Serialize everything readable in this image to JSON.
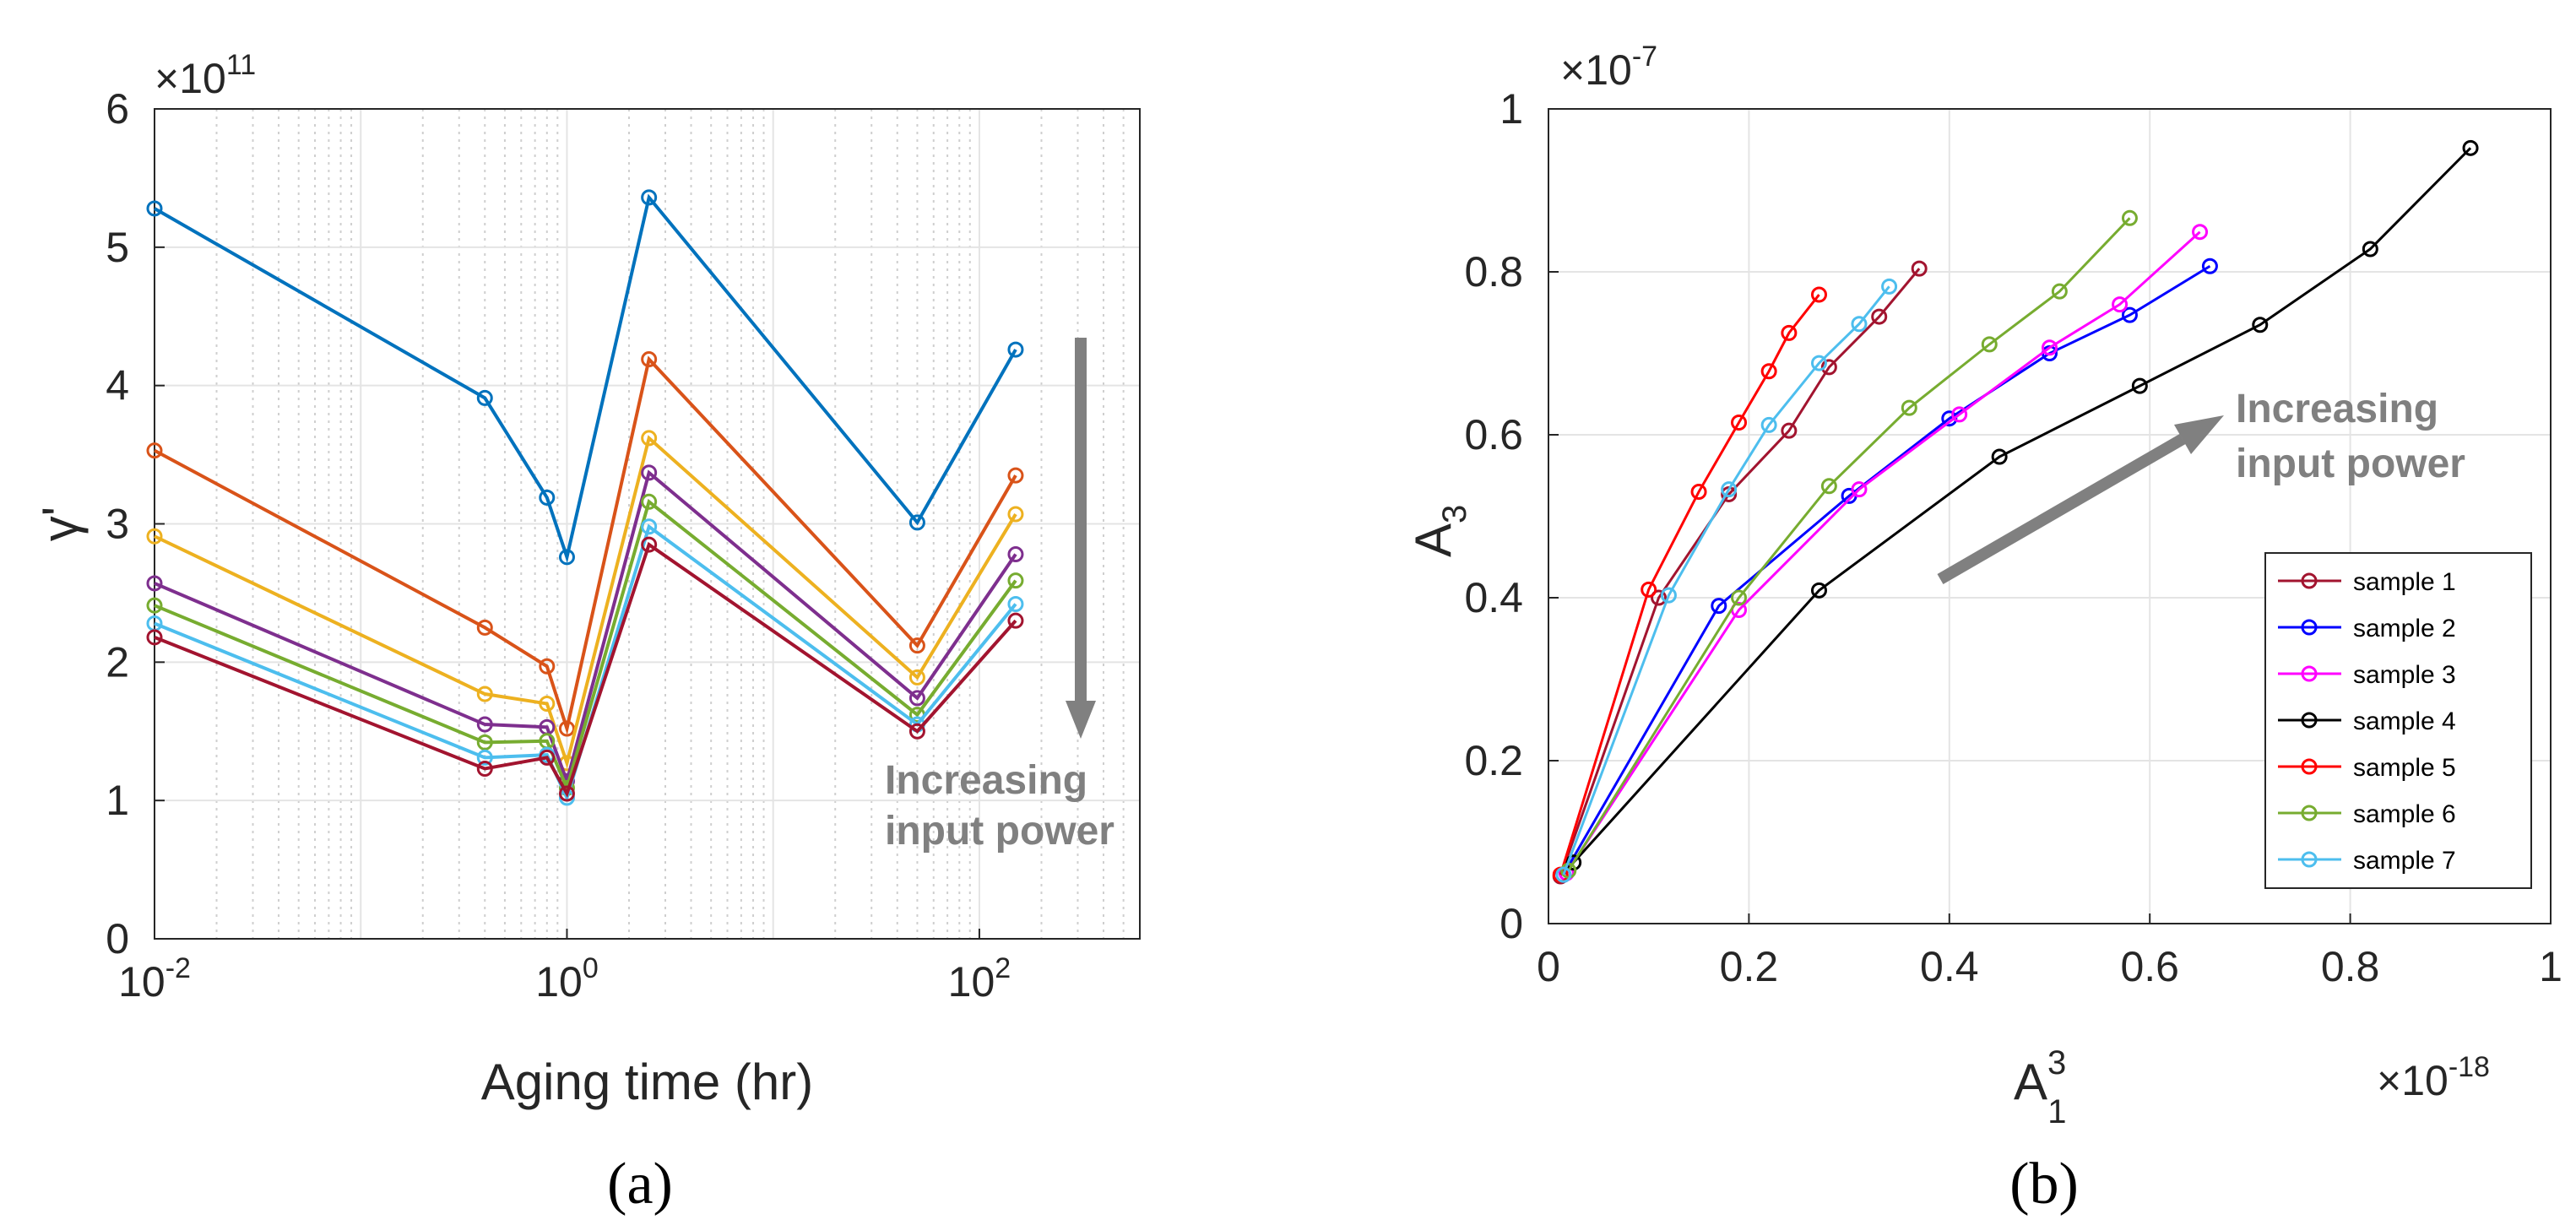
{
  "chart_data": [
    {
      "panel_label": "(a)",
      "type": "line",
      "xscale": "log",
      "xlim": [
        0.01,
        600
      ],
      "ylim": [
        0,
        6
      ],
      "y_exponent": "×10",
      "y_exponent_power": "11",
      "xlabel": "Aging time (hr)",
      "ylabel": "γ'",
      "x_tick_labels": [
        {
          "value": 0.01,
          "base": "10",
          "exp": "-2"
        },
        {
          "value": 1,
          "base": "10",
          "exp": "0"
        },
        {
          "value": 100,
          "base": "10",
          "exp": "2"
        }
      ],
      "y_ticks": [
        0,
        1,
        2,
        3,
        4,
        5,
        6
      ],
      "grid": true,
      "annotation": [
        "Increasing",
        "input power"
      ],
      "x": [
        0.01,
        0.4,
        0.8,
        1,
        2.5,
        50,
        150
      ],
      "series": [
        {
          "name": "sample 1",
          "color": "#0072BD",
          "values": [
            5.28,
            3.91,
            3.19,
            2.76,
            5.36,
            3.01,
            4.26
          ]
        },
        {
          "name": "sample 2",
          "color": "#D95319",
          "values": [
            3.53,
            2.25,
            1.97,
            1.52,
            4.19,
            2.12,
            3.35
          ]
        },
        {
          "name": "sample 3",
          "color": "#EDB120",
          "values": [
            2.91,
            1.77,
            1.7,
            1.27,
            3.62,
            1.89,
            3.07
          ]
        },
        {
          "name": "sample 4",
          "color": "#7E2F8E",
          "values": [
            2.57,
            1.55,
            1.53,
            1.14,
            3.37,
            1.74,
            2.78
          ]
        },
        {
          "name": "sample 5",
          "color": "#77AC30",
          "values": [
            2.41,
            1.42,
            1.43,
            1.09,
            3.16,
            1.62,
            2.59
          ]
        },
        {
          "name": "sample 6",
          "color": "#4DBEEE",
          "values": [
            2.28,
            1.31,
            1.33,
            1.02,
            2.98,
            1.55,
            2.42
          ]
        },
        {
          "name": "sample 7",
          "color": "#A2142F",
          "values": [
            2.18,
            1.23,
            1.31,
            1.05,
            2.85,
            1.5,
            2.3
          ]
        }
      ]
    },
    {
      "panel_label": "(b)",
      "type": "line",
      "xlim": [
        0,
        1
      ],
      "ylim": [
        0,
        1
      ],
      "x_exponent": "×10",
      "x_exponent_power": "-18",
      "y_exponent": "×10",
      "y_exponent_power": "-7",
      "xlabel_base": "A",
      "xlabel_sub": "1",
      "xlabel_sup": "3",
      "ylabel_base": "A",
      "ylabel_sub": "3",
      "x_ticks": [
        "0",
        "0.2",
        "0.4",
        "0.6",
        "0.8",
        "1"
      ],
      "y_ticks": [
        "0",
        "0.2",
        "0.4",
        "0.6",
        "0.8",
        "1"
      ],
      "grid": true,
      "legend_position": "bottom-right",
      "annotation": [
        "Increasing",
        "input power"
      ],
      "series": [
        {
          "name": "sample 1",
          "color": "#A2142F",
          "points": [
            [
              0.012,
              0.058
            ],
            [
              0.11,
              0.4
            ],
            [
              0.18,
              0.527
            ],
            [
              0.24,
              0.605
            ],
            [
              0.28,
              0.683
            ],
            [
              0.33,
              0.745
            ],
            [
              0.37,
              0.804
            ]
          ]
        },
        {
          "name": "sample 2",
          "color": "#0000FF",
          "points": [
            [
              0.015,
              0.06
            ],
            [
              0.17,
              0.39
            ],
            [
              0.3,
              0.525
            ],
            [
              0.4,
              0.62
            ],
            [
              0.5,
              0.7
            ],
            [
              0.58,
              0.747
            ],
            [
              0.66,
              0.807
            ]
          ]
        },
        {
          "name": "sample 3",
          "color": "#FF00FF",
          "points": [
            [
              0.018,
              0.062
            ],
            [
              0.19,
              0.385
            ],
            [
              0.31,
              0.533
            ],
            [
              0.41,
              0.625
            ],
            [
              0.5,
              0.707
            ],
            [
              0.57,
              0.76
            ],
            [
              0.65,
              0.849
            ]
          ]
        },
        {
          "name": "sample 4",
          "color": "#000000",
          "points": [
            [
              0.025,
              0.075
            ],
            [
              0.27,
              0.409
            ],
            [
              0.45,
              0.573
            ],
            [
              0.59,
              0.66
            ],
            [
              0.71,
              0.735
            ],
            [
              0.82,
              0.828
            ],
            [
              0.92,
              0.952
            ]
          ]
        },
        {
          "name": "sample 5",
          "color": "#FF0000",
          "points": [
            [
              0.012,
              0.06
            ],
            [
              0.1,
              0.41
            ],
            [
              0.15,
              0.53
            ],
            [
              0.19,
              0.615
            ],
            [
              0.22,
              0.678
            ],
            [
              0.24,
              0.725
            ],
            [
              0.27,
              0.772
            ]
          ]
        },
        {
          "name": "sample 6",
          "color": "#77AC30",
          "points": [
            [
              0.02,
              0.065
            ],
            [
              0.19,
              0.4
            ],
            [
              0.28,
              0.537
            ],
            [
              0.36,
              0.633
            ],
            [
              0.44,
              0.711
            ],
            [
              0.51,
              0.776
            ],
            [
              0.58,
              0.866
            ]
          ]
        },
        {
          "name": "sample 7",
          "color": "#4DBEEE",
          "points": [
            [
              0.015,
              0.06
            ],
            [
              0.12,
              0.403
            ],
            [
              0.18,
              0.533
            ],
            [
              0.22,
              0.612
            ],
            [
              0.27,
              0.688
            ],
            [
              0.31,
              0.736
            ],
            [
              0.34,
              0.782
            ]
          ]
        }
      ]
    }
  ]
}
